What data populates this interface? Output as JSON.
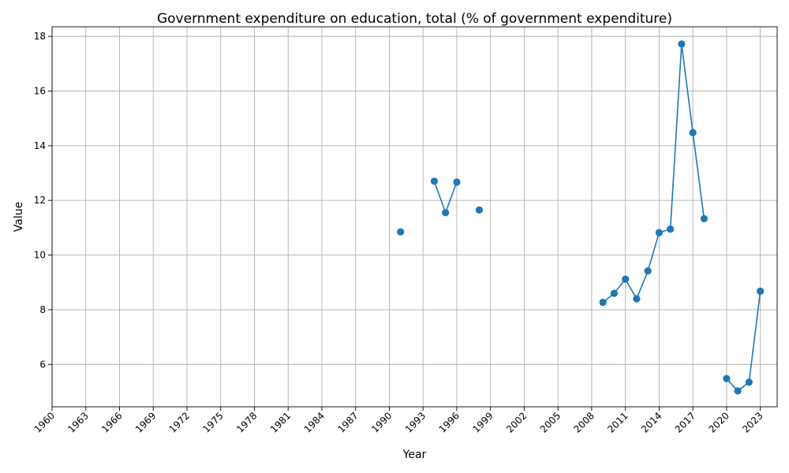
{
  "chart_data": {
    "type": "line",
    "title": "Government expenditure on education, total (% of government expenditure)",
    "xlabel": "Year",
    "ylabel": "Value",
    "xlim": [
      1960,
      2024.5
    ],
    "ylim": [
      4.45,
      18.35
    ],
    "grid": true,
    "x_ticks": [
      1960,
      1963,
      1966,
      1969,
      1972,
      1975,
      1978,
      1981,
      1984,
      1987,
      1990,
      1993,
      1996,
      1999,
      2002,
      2005,
      2008,
      2011,
      2014,
      2017,
      2020,
      2023
    ],
    "y_ticks": [
      6,
      8,
      10,
      12,
      14,
      16,
      18
    ],
    "series": [
      {
        "color": "#1f77b4",
        "points": [
          {
            "x": 1991,
            "y": 10.85
          },
          {
            "x": 1992,
            "y": null
          },
          {
            "x": 1993,
            "y": null
          },
          {
            "x": 1994,
            "y": 12.7
          },
          {
            "x": 1995,
            "y": 11.55
          },
          {
            "x": 1996,
            "y": 12.67
          },
          {
            "x": 1997,
            "y": null
          },
          {
            "x": 1998,
            "y": 11.65
          },
          {
            "x": 1999,
            "y": null
          },
          {
            "x": 2009,
            "y": 8.27
          },
          {
            "x": 2010,
            "y": 8.6
          },
          {
            "x": 2011,
            "y": 9.12
          },
          {
            "x": 2012,
            "y": 8.4
          },
          {
            "x": 2013,
            "y": 9.42
          },
          {
            "x": 2014,
            "y": 10.82
          },
          {
            "x": 2015,
            "y": 10.95
          },
          {
            "x": 2016,
            "y": 17.72
          },
          {
            "x": 2017,
            "y": 14.48
          },
          {
            "x": 2018,
            "y": 11.33
          },
          {
            "x": 2019,
            "y": null
          },
          {
            "x": 2020,
            "y": 5.48
          },
          {
            "x": 2021,
            "y": 5.03
          },
          {
            "x": 2022,
            "y": 5.35
          },
          {
            "x": 2023,
            "y": 8.68
          }
        ]
      }
    ]
  }
}
